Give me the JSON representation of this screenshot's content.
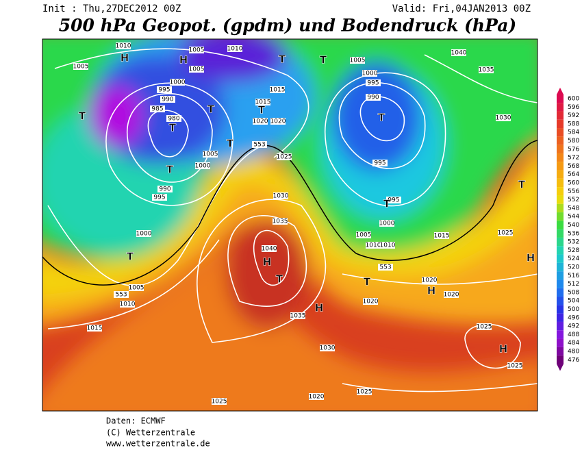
{
  "header": {
    "init": "Init : Thu,27DEC2012 00Z",
    "valid": "Valid: Fri,04JAN2013 00Z",
    "title": "500 hPa Geopot. (gpdm) und Bodendruck (hPa)"
  },
  "legend": {
    "levels": [
      600,
      596,
      592,
      588,
      584,
      580,
      576,
      572,
      568,
      564,
      560,
      556,
      552,
      548,
      544,
      540,
      536,
      532,
      528,
      524,
      520,
      516,
      512,
      508,
      504,
      500,
      496,
      492,
      488,
      484,
      480,
      476
    ]
  },
  "map": {
    "isobar_labels": [
      "1010",
      "1005",
      "1010",
      "1005",
      "1005",
      "1005",
      "1000",
      "995",
      "1000",
      "995",
      "990",
      "985",
      "980",
      "1015",
      "1015",
      "1020",
      "1020",
      "990",
      "1040",
      "1035",
      "1030",
      "1005",
      "1000",
      "1025",
      "995",
      "990",
      "995",
      "1030",
      "995",
      "1000",
      "1035",
      "1000",
      "1005",
      "1015",
      "1025",
      "1010",
      "1010",
      "1040",
      "1020",
      "1020",
      "1005",
      "1010",
      "1020",
      "1035",
      "1015",
      "1030",
      "1025",
      "1025",
      "1020",
      "1025",
      "1025",
      "553",
      "553",
      "553"
    ],
    "centers": [
      "H",
      "H",
      "H",
      "H",
      "H",
      "H",
      "H",
      "T",
      "T",
      "T",
      "T",
      "T",
      "T",
      "T",
      "T",
      "T",
      "T",
      "T",
      "T",
      "T",
      "T"
    ]
  },
  "footer": {
    "source": "Daten: ECMWF",
    "copyright": "(C) Wetterzentrale",
    "url": "www.wetterzentrale.de"
  }
}
